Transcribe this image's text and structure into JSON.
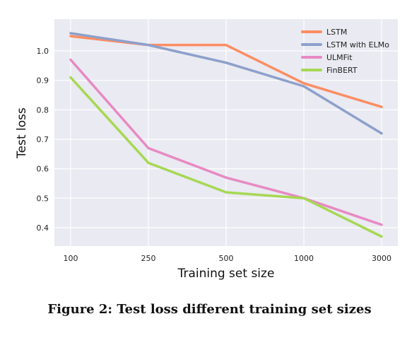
{
  "chart_data": {
    "type": "line",
    "categories": [
      "100",
      "250",
      "500",
      "1000",
      "3000"
    ],
    "series": [
      {
        "name": "LSTM",
        "color": "#FC8D62",
        "values": [
          1.05,
          1.02,
          1.02,
          0.89,
          0.81
        ]
      },
      {
        "name": "LSTM with ELMo",
        "color": "#8DA0CB",
        "values": [
          1.06,
          1.02,
          0.96,
          0.88,
          0.72
        ]
      },
      {
        "name": "ULMFit",
        "color": "#E78AC3",
        "values": [
          0.97,
          0.67,
          0.57,
          0.5,
          0.41
        ]
      },
      {
        "name": "FinBERT",
        "color": "#A6D854",
        "values": [
          0.91,
          0.62,
          0.52,
          0.5,
          0.37
        ]
      }
    ],
    "title": "",
    "xlabel": "Training set size",
    "ylabel": "Test loss",
    "ylim": [
      0.35,
      1.08
    ],
    "yticks": [
      0.4,
      0.5,
      0.6,
      0.7,
      0.8,
      0.9,
      1.0
    ],
    "ytick_labels": [
      "0.4",
      "0.5",
      "0.6",
      "0.7",
      "0.8",
      "0.9",
      "1.0"
    ],
    "grid": true,
    "legend_position": "top-right",
    "background_color": "#EAEAF2"
  },
  "caption": "Figure 2: Test loss different training set sizes"
}
